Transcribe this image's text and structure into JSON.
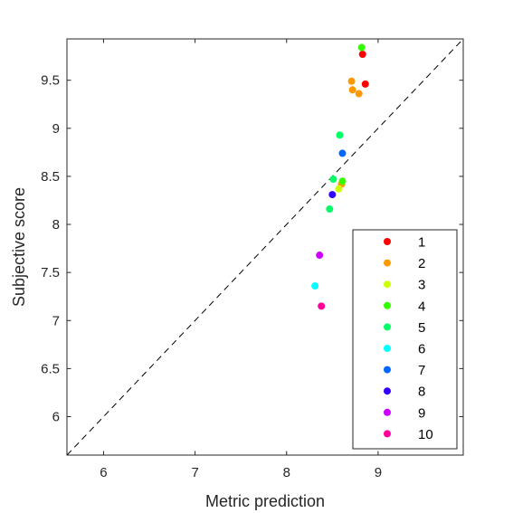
{
  "chart_data": {
    "type": "scatter",
    "xlabel": "Metric prediction",
    "ylabel": "Subjective score",
    "xlim": [
      5.6,
      9.93
    ],
    "ylim": [
      5.6,
      9.93
    ],
    "xticks": [
      6,
      7,
      8,
      9
    ],
    "yticks": [
      6,
      6.5,
      7,
      7.5,
      8,
      8.5,
      9,
      9.5
    ],
    "xtick_labels": [
      "6",
      "7",
      "8",
      "9"
    ],
    "ytick_labels": [
      "6",
      "6.5",
      "7",
      "7.5",
      "8",
      "8.5",
      "9",
      "9.5"
    ],
    "grid": false,
    "reference_line": "y = x (dashed)",
    "legend_position": "bottom-right",
    "series": [
      {
        "name": "1",
        "color": "#ff0000",
        "points": [
          [
            8.83,
            9.77
          ],
          [
            8.86,
            9.46
          ]
        ]
      },
      {
        "name": "2",
        "color": "#ff9900",
        "points": [
          [
            8.71,
            9.49
          ],
          [
            8.72,
            9.4
          ],
          [
            8.79,
            9.36
          ],
          [
            8.6,
            8.42
          ]
        ]
      },
      {
        "name": "3",
        "color": "#ccff00",
        "points": [
          [
            8.57,
            8.37
          ]
        ]
      },
      {
        "name": "4",
        "color": "#33ff00",
        "points": [
          [
            8.82,
            9.84
          ],
          [
            8.61,
            8.45
          ]
        ]
      },
      {
        "name": "5",
        "color": "#00ff66",
        "points": [
          [
            8.58,
            8.93
          ],
          [
            8.51,
            8.47
          ],
          [
            8.47,
            8.16
          ]
        ]
      },
      {
        "name": "6",
        "color": "#00ffff",
        "points": [
          [
            8.31,
            7.36
          ]
        ]
      },
      {
        "name": "7",
        "color": "#0066ff",
        "points": [
          [
            8.61,
            8.74
          ]
        ]
      },
      {
        "name": "8",
        "color": "#3300ff",
        "points": [
          [
            8.5,
            8.31
          ]
        ]
      },
      {
        "name": "9",
        "color": "#cc00ff",
        "points": [
          [
            8.36,
            7.68
          ]
        ]
      },
      {
        "name": "10",
        "color": "#ff0099",
        "points": [
          [
            8.38,
            7.15
          ]
        ]
      }
    ]
  }
}
